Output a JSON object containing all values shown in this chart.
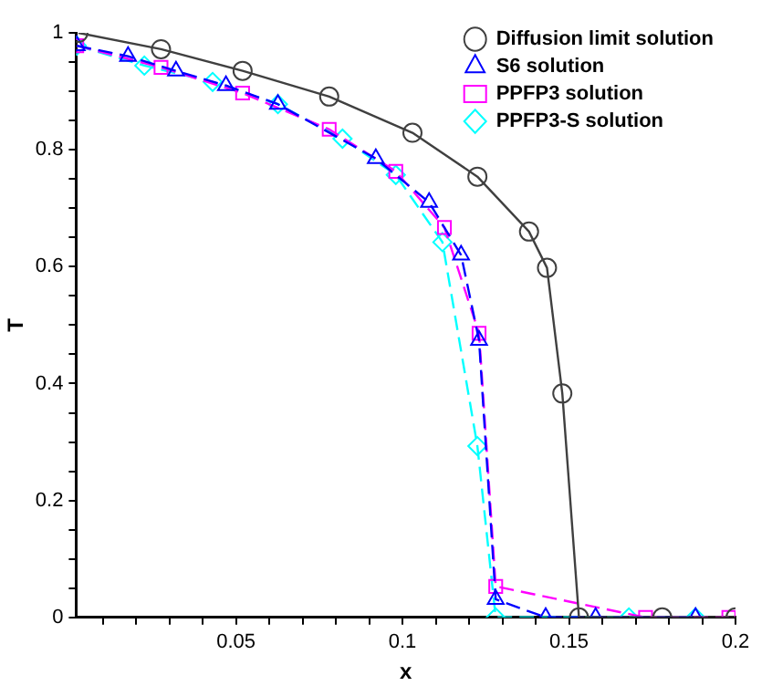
{
  "chart_data": {
    "type": "line",
    "xlabel": "x",
    "ylabel": "T",
    "xlim": [
      0.002,
      0.2
    ],
    "ylim": [
      0,
      1
    ],
    "xticks": [
      {
        "value": 0.01,
        "label": null
      },
      {
        "value": 0.02,
        "label": null
      },
      {
        "value": 0.03,
        "label": null
      },
      {
        "value": 0.04,
        "label": null
      },
      0.05,
      {
        "value": 0.06,
        "label": null
      },
      {
        "value": 0.07,
        "label": null
      },
      {
        "value": 0.08,
        "label": null
      },
      {
        "value": 0.09,
        "label": null
      },
      0.1,
      {
        "value": 0.11,
        "label": null
      },
      {
        "value": 0.12,
        "label": null
      },
      {
        "value": 0.13,
        "label": null
      },
      {
        "value": 0.14,
        "label": null
      },
      0.15,
      {
        "value": 0.16,
        "label": null
      },
      {
        "value": 0.17,
        "label": null
      },
      {
        "value": 0.18,
        "label": null
      },
      {
        "value": 0.19,
        "label": null
      },
      0.2
    ],
    "yticks": [
      0,
      {
        "value": 0.05,
        "label": null
      },
      {
        "value": 0.1,
        "label": null
      },
      {
        "value": 0.15,
        "label": null
      },
      0.2,
      {
        "value": 0.25,
        "label": null
      },
      {
        "value": 0.3,
        "label": null
      },
      {
        "value": 0.35,
        "label": null
      },
      0.4,
      {
        "value": 0.45,
        "label": null
      },
      {
        "value": 0.5,
        "label": null
      },
      {
        "value": 0.55,
        "label": null
      },
      0.6,
      {
        "value": 0.65,
        "label": null
      },
      {
        "value": 0.7,
        "label": null
      },
      {
        "value": 0.75,
        "label": null
      },
      0.8,
      {
        "value": 0.85,
        "label": null
      },
      {
        "value": 0.9,
        "label": null
      },
      {
        "value": 0.95,
        "label": null
      },
      1
    ],
    "grid": false,
    "legend": "top right",
    "series": [
      {
        "name": "Diffusion limit solution",
        "color": "#404040",
        "marker": "circle",
        "line_style": "solid",
        "x": [
          0.0027,
          0.0275,
          0.052,
          0.078,
          0.103,
          0.1225,
          0.138,
          0.1434,
          0.148,
          0.153,
          0.178,
          0.2
        ],
        "values": [
          1.0,
          0.972,
          0.935,
          0.891,
          0.829,
          0.754,
          0.66,
          0.598,
          0.383,
          0,
          0,
          0
        ]
      },
      {
        "name": "S6 solution",
        "color": "#0000ff",
        "marker": "triangle",
        "line_style": "dashed",
        "x": [
          0.0022,
          0.0176,
          0.032,
          0.047,
          0.0626,
          0.092,
          0.108,
          0.1176,
          0.123,
          0.128,
          0.143,
          0.158,
          0.188
        ],
        "values": [
          0.978,
          0.96,
          0.935,
          0.91,
          0.878,
          0.785,
          0.71,
          0.62,
          0.474,
          0.031,
          0,
          0,
          0
        ]
      },
      {
        "name": "PPFP3 solution",
        "color": "#ff00ff",
        "marker": "square",
        "line_style": "dashed",
        "x": [
          0.0022,
          0.0275,
          0.052,
          0.078,
          0.098,
          0.1126,
          0.123,
          0.128,
          0.173,
          0.198
        ],
        "values": [
          0.978,
          0.941,
          0.897,
          0.835,
          0.763,
          0.667,
          0.486,
          0.053,
          0,
          0
        ]
      },
      {
        "name": "PPFP3-S solution",
        "color": "#00ffff",
        "marker": "diamond",
        "line_style": "dashed",
        "x": [
          0.0022,
          0.0225,
          0.043,
          0.0626,
          0.082,
          0.098,
          0.112,
          0.1225,
          0.128,
          0.168,
          0.188
        ],
        "values": [
          0.978,
          0.944,
          0.916,
          0.878,
          0.819,
          0.757,
          0.642,
          0.293,
          0,
          0,
          0
        ]
      }
    ]
  }
}
